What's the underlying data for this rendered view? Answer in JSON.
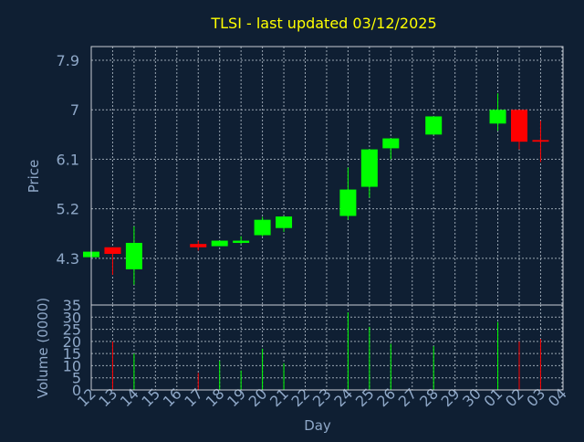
{
  "colors": {
    "background": "#0f1f33",
    "title": "#ffff00",
    "axis_text": "#8fa8c8",
    "grid": "#9aa6b2",
    "up": "#00ff00",
    "down": "#ff0000"
  },
  "chart_data": {
    "type": "candlestick",
    "title": "TLSI - last updated 03/12/2025",
    "xlabel": "Day",
    "price_axis": {
      "label": "Price",
      "ticks": [
        "7.9",
        "7",
        "6.1",
        "5.2",
        "4.3"
      ],
      "ylim": [
        3.45,
        8.15
      ]
    },
    "volume_axis": {
      "label": "Volume (0000)",
      "ticks": [
        "35",
        "30",
        "25",
        "20",
        "15",
        "10",
        "5",
        "0"
      ],
      "ylim": [
        0,
        35
      ]
    },
    "x_ticks": [
      "12",
      "13",
      "14",
      "15",
      "16",
      "17",
      "18",
      "19",
      "20",
      "21",
      "22",
      "23",
      "24",
      "25",
      "26",
      "27",
      "28",
      "29",
      "30",
      "01",
      "02",
      "03",
      "04"
    ],
    "grid": true,
    "candles": [
      {
        "day": "12",
        "open": 4.32,
        "high": 4.45,
        "low": 4.3,
        "close": 4.42,
        "volume": 0
      },
      {
        "day": "13",
        "open": 4.5,
        "high": 4.5,
        "low": 4.0,
        "close": 4.38,
        "volume": 20
      },
      {
        "day": "14",
        "open": 4.1,
        "high": 4.88,
        "low": 3.82,
        "close": 4.58,
        "volume": 15
      },
      {
        "day": "17",
        "open": 4.56,
        "high": 4.62,
        "low": 4.44,
        "close": 4.5,
        "volume": 7
      },
      {
        "day": "18",
        "open": 4.52,
        "high": 4.62,
        "low": 4.52,
        "close": 4.62,
        "volume": 12
      },
      {
        "day": "19",
        "open": 4.58,
        "high": 4.7,
        "low": 4.56,
        "close": 4.62,
        "volume": 8
      },
      {
        "day": "20",
        "open": 4.72,
        "high": 5.05,
        "low": 4.7,
        "close": 5.0,
        "volume": 17
      },
      {
        "day": "21",
        "open": 4.85,
        "high": 5.07,
        "low": 4.78,
        "close": 5.06,
        "volume": 11
      },
      {
        "day": "24",
        "open": 5.07,
        "high": 5.95,
        "low": 5.0,
        "close": 5.55,
        "volume": 32
      },
      {
        "day": "25",
        "open": 5.6,
        "high": 6.25,
        "low": 5.4,
        "close": 6.28,
        "volume": 26
      },
      {
        "day": "26",
        "open": 6.3,
        "high": 6.45,
        "low": 6.1,
        "close": 6.48,
        "volume": 19
      },
      {
        "day": "28",
        "open": 6.55,
        "high": 6.88,
        "low": 6.55,
        "close": 6.88,
        "volume": 18
      },
      {
        "day": "01",
        "open": 6.75,
        "high": 7.3,
        "low": 6.62,
        "close": 7.0,
        "volume": 28
      },
      {
        "day": "02",
        "open": 7.0,
        "high": 7.0,
        "low": 6.28,
        "close": 6.42,
        "volume": 20
      },
      {
        "day": "03",
        "open": 6.45,
        "high": 6.8,
        "low": 6.05,
        "close": 6.42,
        "volume": 21
      }
    ]
  }
}
